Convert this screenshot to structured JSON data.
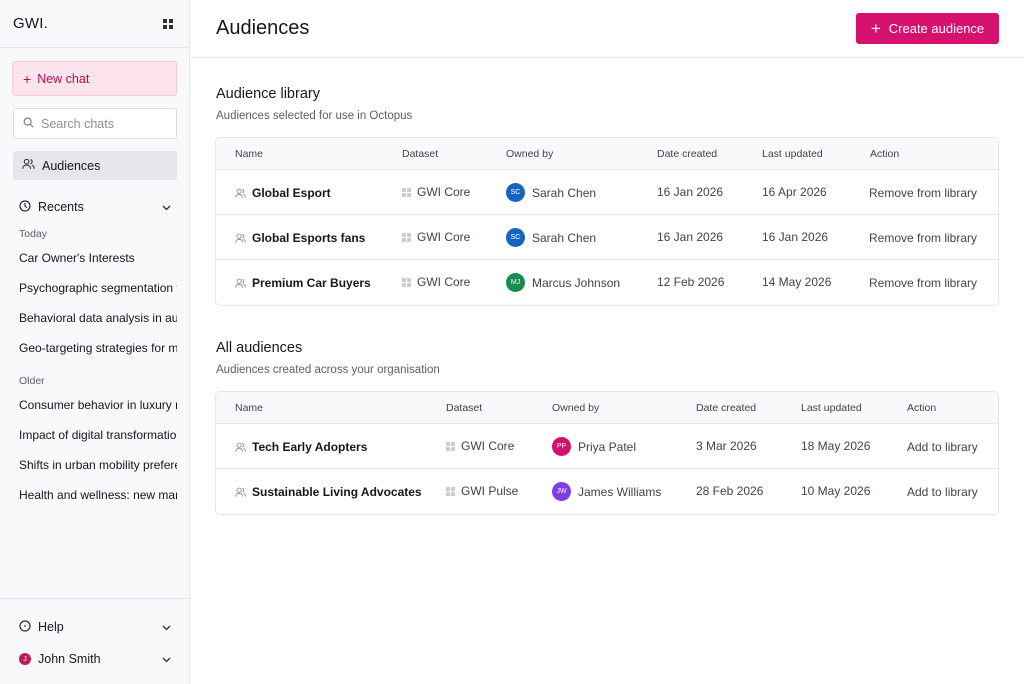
{
  "sidebar": {
    "logo": "GWI.",
    "new_chat_label": "New chat",
    "search_placeholder": "Search chats",
    "nav_audiences": "Audiences",
    "recents_label": "Recents",
    "groups": {
      "today": "Today",
      "older": "Older"
    },
    "today_chats": [
      "Car Owner's Interests",
      "Psychographic segmentation for",
      "Behavioral data analysis in audience",
      "Geo-targeting strategies for marketing"
    ],
    "older_chats": [
      "Consumer behavior in luxury markets",
      "Impact of digital transformation",
      "Shifts in urban mobility preferences",
      "Health and wellness: new markets"
    ],
    "help_label": "Help",
    "user_name": "John Smith",
    "user_initial": "J"
  },
  "header": {
    "title": "Audiences",
    "create_label": "Create audience"
  },
  "library": {
    "title": "Audience library",
    "subtitle": "Audiences selected for use in Octopus",
    "columns": [
      "Name",
      "Dataset",
      "Owned by",
      "Date created",
      "Last updated",
      "Action"
    ],
    "rows": [
      {
        "name": "Global Esport",
        "dataset": "GWI Core",
        "owner": "Sarah Chen",
        "initials": "SC",
        "color": "#1565c0",
        "created": "16 Jan 2026",
        "updated": "16 Apr 2026",
        "action": "Remove from library"
      },
      {
        "name": "Global Esports fans",
        "dataset": "GWI Core",
        "owner": "Sarah Chen",
        "initials": "SC",
        "color": "#1565c0",
        "created": "16 Jan 2026",
        "updated": "16 Jan 2026",
        "action": "Remove from library"
      },
      {
        "name": "Premium Car Buyers",
        "dataset": "GWI Core",
        "owner": "Marcus Johnson",
        "initials": "MJ",
        "color": "#1b8a4e",
        "created": "12 Feb 2026",
        "updated": "14 May 2026",
        "action": "Remove from library"
      }
    ]
  },
  "all": {
    "title": "All audiences",
    "subtitle": "Audiences created across your organisation",
    "columns": [
      "Name",
      "Dataset",
      "Owned by",
      "Date created",
      "Last updated",
      "Action"
    ],
    "rows": [
      {
        "name": "Tech Early Adopters",
        "dataset": "GWI Core",
        "owner": "Priya Patel",
        "initials": "PP",
        "color": "#d6116d",
        "created": "3 Mar 2026",
        "updated": "18 May 2026",
        "action": "Add to library"
      },
      {
        "name": "Sustainable Living Advocates",
        "dataset": "GWI Pulse",
        "owner": "James Williams",
        "initials": "JW",
        "color": "#7b3fe4",
        "created": "28 Feb 2026",
        "updated": "10 May 2026",
        "action": "Add to library"
      }
    ]
  },
  "colors": {
    "accent": "#d6116d",
    "new_chat_bg": "#fde3ec",
    "sidebar_bg": "#f8f9fa"
  }
}
